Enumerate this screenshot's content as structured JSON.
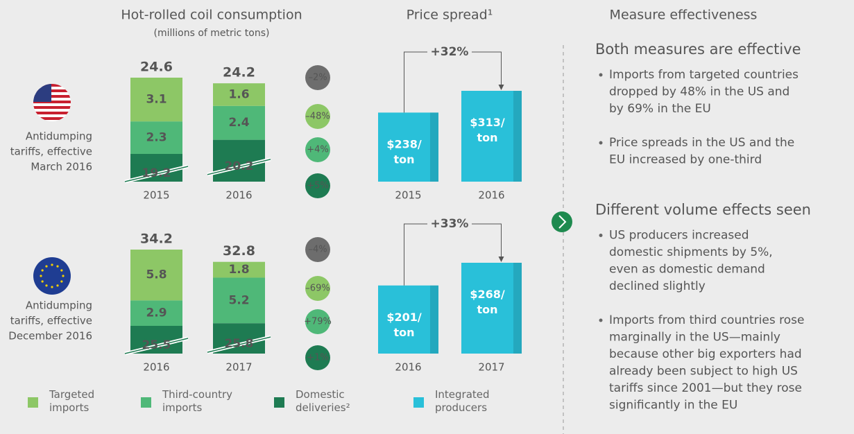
{
  "chart_data": [
    {
      "type": "stacked_bar",
      "title": "Hot-rolled coil consumption",
      "subtitle": "(millions of metric tons)",
      "caption": [
        "Antidumping",
        "tariffs, effective",
        "March 2016"
      ],
      "categories": [
        "2015",
        "2016"
      ],
      "totals": [
        24.6,
        24.2
      ],
      "series": [
        {
          "name": "Targeted imports",
          "color": "#8dc766",
          "values": [
            3.1,
            1.6
          ]
        },
        {
          "name": "Third-country imports",
          "color": "#4fb878",
          "values": [
            2.3,
            2.4
          ]
        },
        {
          "name": "Domestic deliveries²",
          "color": "#1e7b52",
          "values": [
            19.2,
            20.2
          ]
        }
      ],
      "changes": [
        "–2%",
        "–48%",
        "+4%",
        "+5%"
      ],
      "axis_break": true
    },
    {
      "type": "bar",
      "title": "Price spread¹",
      "categories": [
        "2015",
        "2016"
      ],
      "series": [
        {
          "name": "Integrated producers",
          "color": "#29c0d9",
          "values": [
            238,
            313
          ],
          "value_labels": [
            "$238/ton",
            "$313/ton"
          ]
        }
      ],
      "annotation": "+32%"
    },
    {
      "type": "stacked_bar",
      "caption": [
        "Antidumping",
        "tariffs, effective",
        "December 2016"
      ],
      "categories": [
        "2016",
        "2017"
      ],
      "totals": [
        34.2,
        32.8
      ],
      "series": [
        {
          "color": "#8dc766",
          "values": [
            5.8,
            1.8
          ]
        },
        {
          "color": "#4fb878",
          "values": [
            2.9,
            5.2
          ]
        },
        {
          "color": "#1e7b52",
          "values": [
            25.5,
            25.8
          ]
        }
      ],
      "changes": [
        "–4%",
        "–69%",
        "+79%",
        "+1%"
      ],
      "axis_break": true
    },
    {
      "type": "bar",
      "categories": [
        "2016",
        "2017"
      ],
      "series": [
        {
          "color": "#29c0d9",
          "values": [
            201,
            268
          ],
          "value_labels": [
            "$201/ton",
            "$268/ton"
          ]
        }
      ],
      "annotation": "+33%"
    }
  ],
  "panel": {
    "title": "Measure effectiveness",
    "sections": [
      {
        "heading": "Both measures are effective",
        "bullets": [
          [
            "Imports from targeted countries",
            "dropped by 48% in the US and",
            "by 69% in the EU"
          ],
          [
            "Price spreads in the US and the",
            "EU increased by one-third"
          ]
        ]
      },
      {
        "heading": "Different volume effects seen",
        "bullets": [
          [
            "US producers increased",
            "domestic shipments by 5%,",
            "even as domestic demand",
            "declined slightly"
          ],
          [
            "Imports from third countries rose",
            "marginally in the US—mainly",
            "because other big exporters had",
            "already been subject to high US",
            "tariffs since 2001—but they rose",
            "significantly in the EU"
          ]
        ]
      }
    ]
  }
}
